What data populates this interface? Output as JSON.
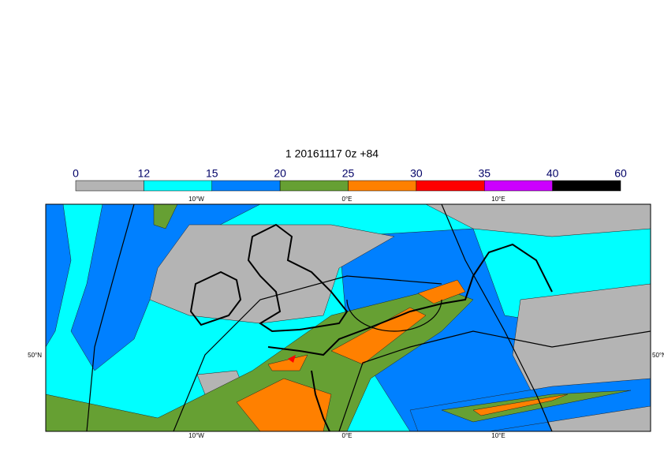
{
  "title": "1 20161117 0z +84",
  "legend": {
    "bounds": [
      0,
      12,
      15,
      20,
      25,
      30,
      35,
      40,
      60
    ],
    "colors": [
      "#b4b4b4",
      "#00ffff",
      "#0080ff",
      "#66a033",
      "#ff8000",
      "#ff0000",
      "#cc00ff",
      "#000000"
    ]
  },
  "map": {
    "top_labels": [
      "10°W",
      "0°E",
      "10°E"
    ],
    "bottom_labels": [
      "10°W",
      "0°E",
      "10°E"
    ],
    "left_labels": [
      "50°N"
    ],
    "right_labels": [
      "50°N"
    ]
  }
}
